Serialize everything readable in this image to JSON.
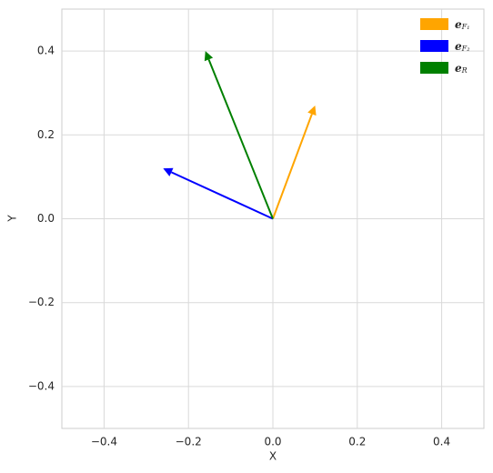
{
  "chart_data": {
    "type": "quiver",
    "xlabel": "X",
    "ylabel": "Y",
    "xlim": [
      -0.5,
      0.5
    ],
    "ylim": [
      -0.5,
      0.5
    ],
    "xticks": [
      {
        "value": -0.4,
        "label": "−0.4"
      },
      {
        "value": -0.2,
        "label": "−0.2"
      },
      {
        "value": 0.0,
        "label": "0.0"
      },
      0.2,
      0.4
    ],
    "yticks": [
      {
        "value": -0.4,
        "label": "−0.4"
      },
      {
        "value": -0.2,
        "label": "−0.2"
      },
      {
        "value": 0.0,
        "label": "0.0"
      },
      0.2,
      0.4
    ],
    "grid": true,
    "legend": "upper right",
    "series": [
      {
        "name": "e",
        "subscript": "F₁",
        "color": "#ffa500",
        "x": [
          0
        ],
        "y": [
          0
        ],
        "u": [
          0.1
        ],
        "v": [
          0.27
        ]
      },
      {
        "name": "e",
        "subscript": "F₂",
        "color": "#0000ff",
        "x": [
          0
        ],
        "y": [
          0
        ],
        "u": [
          -0.26
        ],
        "v": [
          0.12
        ]
      },
      {
        "name": "e",
        "subscript": "R",
        "color": "#008000",
        "x": [
          0
        ],
        "y": [
          0
        ],
        "u": [
          -0.16
        ],
        "v": [
          0.4
        ]
      }
    ]
  }
}
